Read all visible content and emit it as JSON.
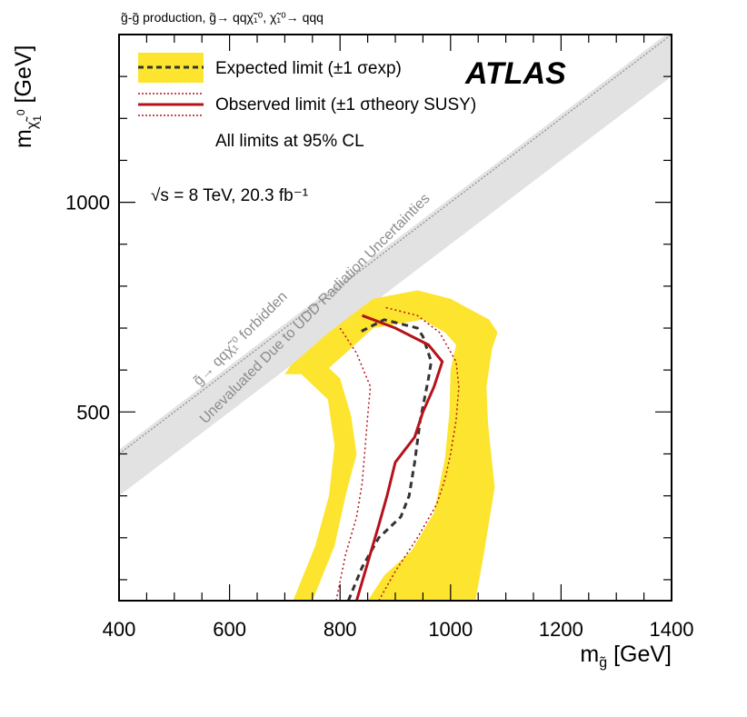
{
  "chart_data": {
    "type": "line",
    "title": "g̃-g̃ production, g̃→ qqχ̃₁⁰, χ̃₁⁰→ qqq",
    "experiment": "ATLAS",
    "energy_label": "√s = 8 TeV, 20.3 fb⁻¹",
    "xlabel": "m_g̃ [GeV]",
    "ylabel": "m_χ̃₁⁰ [GeV]",
    "xlim": [
      400,
      1400
    ],
    "ylim": [
      50,
      1400
    ],
    "xticks": [
      400,
      600,
      800,
      1000,
      1200,
      1400
    ],
    "yticks": [
      500,
      1000
    ],
    "legend": {
      "expected": "Expected limit (±1 σexp)",
      "observed": "Observed limit (±1 σtheory SUSY)",
      "note": "All limits at 95% CL"
    },
    "forbidden_label": "g̃→ qqχ̃₁⁰ forbidden",
    "unevaluated_label": "Unevaluated Due to UDD Radiation Uncertainties",
    "colors": {
      "band": "#fde42f",
      "expected": "#333333",
      "observed": "#b5121b",
      "unevaluated_band": "#e2e2e2",
      "forbidden_line": "#8c8c8c"
    },
    "unevaluated_band": {
      "lower": [
        [
          400,
          300
        ],
        [
          1400,
          1300
        ]
      ],
      "upper": [
        [
          400,
          410
        ],
        [
          1400,
          1410
        ]
      ]
    },
    "forbidden_line": [
      [
        400,
        400
      ],
      [
        1400,
        1400
      ]
    ],
    "series": [
      {
        "name": "band_outer",
        "role": "yellow_band",
        "points": [
          [
            715,
            50
          ],
          [
            755,
            180
          ],
          [
            780,
            300
          ],
          [
            790,
            420
          ],
          [
            778,
            530
          ],
          [
            730,
            590
          ],
          [
            700,
            590
          ],
          [
            710,
            610
          ],
          [
            780,
            690
          ],
          [
            860,
            770
          ],
          [
            940,
            790
          ],
          [
            1000,
            770
          ],
          [
            1070,
            720
          ],
          [
            1085,
            690
          ],
          [
            1075,
            650
          ],
          [
            1065,
            560
          ],
          [
            1068,
            470
          ],
          [
            1080,
            320
          ],
          [
            1060,
            160
          ],
          [
            1045,
            50
          ]
        ]
      },
      {
        "name": "band_inner",
        "role": "yellow_band_hole",
        "points": [
          [
            750,
            50
          ],
          [
            790,
            180
          ],
          [
            810,
            300
          ],
          [
            830,
            400
          ],
          [
            820,
            490
          ],
          [
            800,
            580
          ],
          [
            780,
            605
          ],
          [
            810,
            640
          ],
          [
            860,
            700
          ],
          [
            950,
            720
          ],
          [
            990,
            690
          ],
          [
            1010,
            660
          ],
          [
            1000,
            600
          ],
          [
            998,
            500
          ],
          [
            990,
            390
          ],
          [
            970,
            260
          ],
          [
            930,
            170
          ],
          [
            880,
            110
          ],
          [
            850,
            50
          ]
        ]
      },
      {
        "name": "expected",
        "points": [
          [
            815,
            50
          ],
          [
            840,
            130
          ],
          [
            870,
            200
          ],
          [
            910,
            250
          ],
          [
            925,
            300
          ],
          [
            935,
            380
          ],
          [
            945,
            480
          ],
          [
            960,
            580
          ],
          [
            965,
            620
          ],
          [
            950,
            680
          ],
          [
            940,
            700
          ],
          [
            880,
            720
          ],
          [
            850,
            700
          ],
          [
            835,
            690
          ]
        ]
      },
      {
        "name": "observed",
        "points": [
          [
            830,
            50
          ],
          [
            850,
            140
          ],
          [
            870,
            230
          ],
          [
            885,
            300
          ],
          [
            900,
            380
          ],
          [
            935,
            440
          ],
          [
            950,
            500
          ],
          [
            970,
            560
          ],
          [
            985,
            620
          ],
          [
            960,
            660
          ],
          [
            900,
            700
          ],
          [
            860,
            720
          ],
          [
            840,
            730
          ]
        ]
      },
      {
        "name": "observed_minus_theory",
        "points": [
          [
            793,
            50
          ],
          [
            810,
            160
          ],
          [
            830,
            250
          ],
          [
            840,
            330
          ],
          [
            845,
            410
          ],
          [
            850,
            490
          ],
          [
            855,
            560
          ],
          [
            830,
            640
          ],
          [
            800,
            700
          ]
        ]
      },
      {
        "name": "observed_plus_theory",
        "points": [
          [
            870,
            50
          ],
          [
            900,
            120
          ],
          [
            940,
            200
          ],
          [
            975,
            280
          ],
          [
            990,
            340
          ],
          [
            1000,
            400
          ],
          [
            1010,
            480
          ],
          [
            1015,
            560
          ],
          [
            1010,
            620
          ],
          [
            980,
            690
          ],
          [
            940,
            730
          ],
          [
            880,
            750
          ]
        ]
      }
    ]
  }
}
